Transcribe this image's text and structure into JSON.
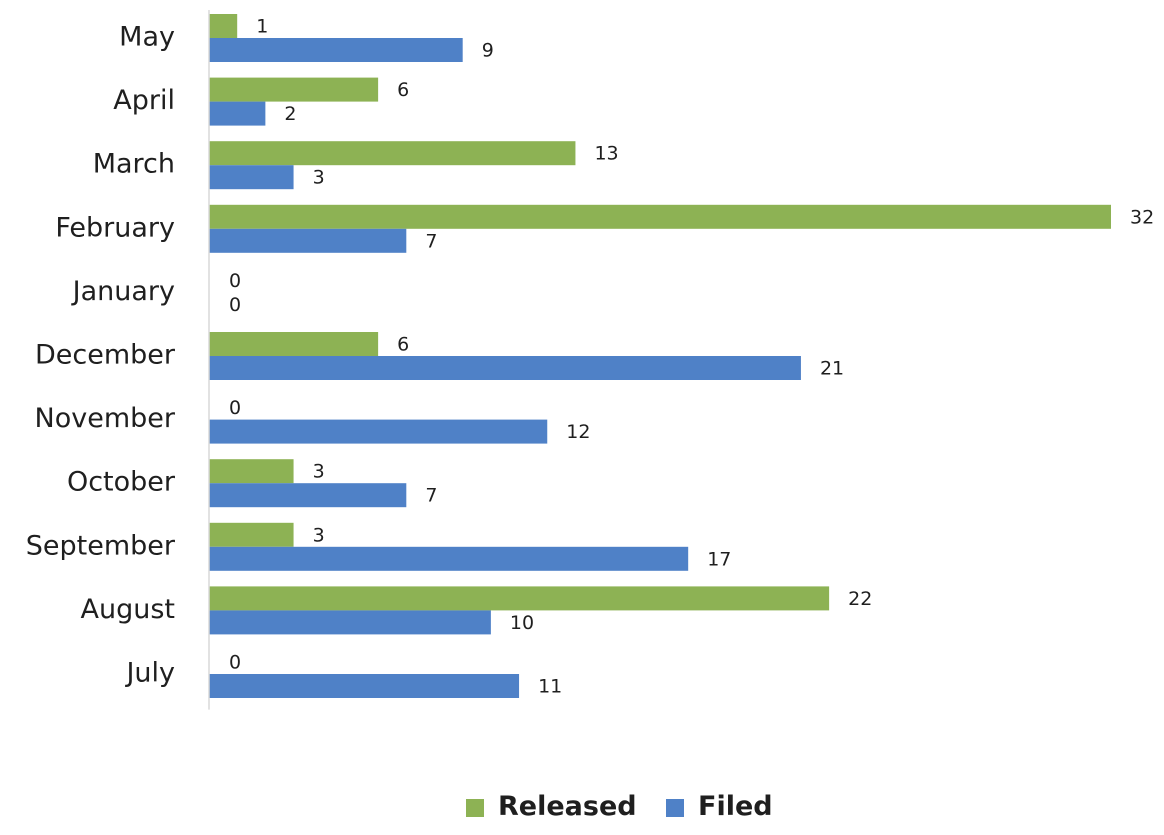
{
  "chart_data": {
    "type": "bar",
    "orientation": "horizontal",
    "categories": [
      "May",
      "April",
      "March",
      "February",
      "January",
      "December",
      "November",
      "October",
      "September",
      "August",
      "July"
    ],
    "series": [
      {
        "name": "Released",
        "color": "#8db254",
        "values": [
          1,
          6,
          13,
          32,
          0,
          6,
          0,
          3,
          3,
          22,
          0
        ]
      },
      {
        "name": "Filed",
        "color": "#4f81c7",
        "values": [
          9,
          2,
          3,
          7,
          0,
          21,
          12,
          7,
          17,
          10,
          11
        ]
      }
    ],
    "title": "",
    "xlabel": "",
    "ylabel": "",
    "xlim": [
      0,
      32
    ],
    "grid": false,
    "legend_position": "bottom",
    "data_labels": true
  }
}
